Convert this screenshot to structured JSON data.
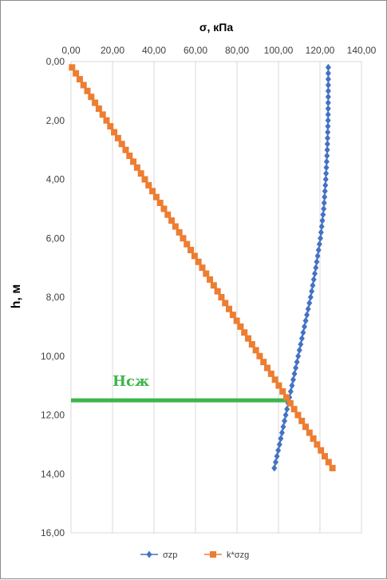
{
  "chart_data": {
    "type": "scatter",
    "xlabel": "σ, кПа",
    "ylabel": "h, м",
    "x_ticks": [
      "0,00",
      "20,00",
      "40,00",
      "60,00",
      "80,00",
      "100,00",
      "120,00",
      "140,00"
    ],
    "y_ticks": [
      "0,00",
      "2,00",
      "4,00",
      "6,00",
      "8,00",
      "10,00",
      "12,00",
      "14,00",
      "16,00"
    ],
    "xlim": [
      0,
      140
    ],
    "ylim": [
      0,
      16
    ],
    "x_axis_position": "top",
    "y_axis_inverted": true,
    "grid": "vertical",
    "legend_position": "bottom",
    "series": [
      {
        "name": "σzp",
        "color": "#4472c4",
        "marker": "diamond",
        "points": [
          [
            124.0,
            0.2
          ],
          [
            124.0,
            1.0
          ],
          [
            123.9,
            2.0
          ],
          [
            123.5,
            3.0
          ],
          [
            122.8,
            4.0
          ],
          [
            121.8,
            5.0
          ],
          [
            120.2,
            6.0
          ],
          [
            118.0,
            7.0
          ],
          [
            115.5,
            8.0
          ],
          [
            112.5,
            9.0
          ],
          [
            109.5,
            10.0
          ],
          [
            106.5,
            11.0
          ],
          [
            103.5,
            12.0
          ],
          [
            100.5,
            13.0
          ],
          [
            98.0,
            13.8
          ]
        ]
      },
      {
        "name": "k*σzg",
        "color": "#ed7d31",
        "marker": "square",
        "points": [
          [
            0.5,
            0.2
          ],
          [
            126.0,
            13.8
          ]
        ]
      }
    ],
    "annotations": [
      {
        "text": "Hсж",
        "color": "#3cb54a",
        "line": {
          "y": 11.5,
          "x_from": 0,
          "x_to": 105
        }
      }
    ]
  }
}
